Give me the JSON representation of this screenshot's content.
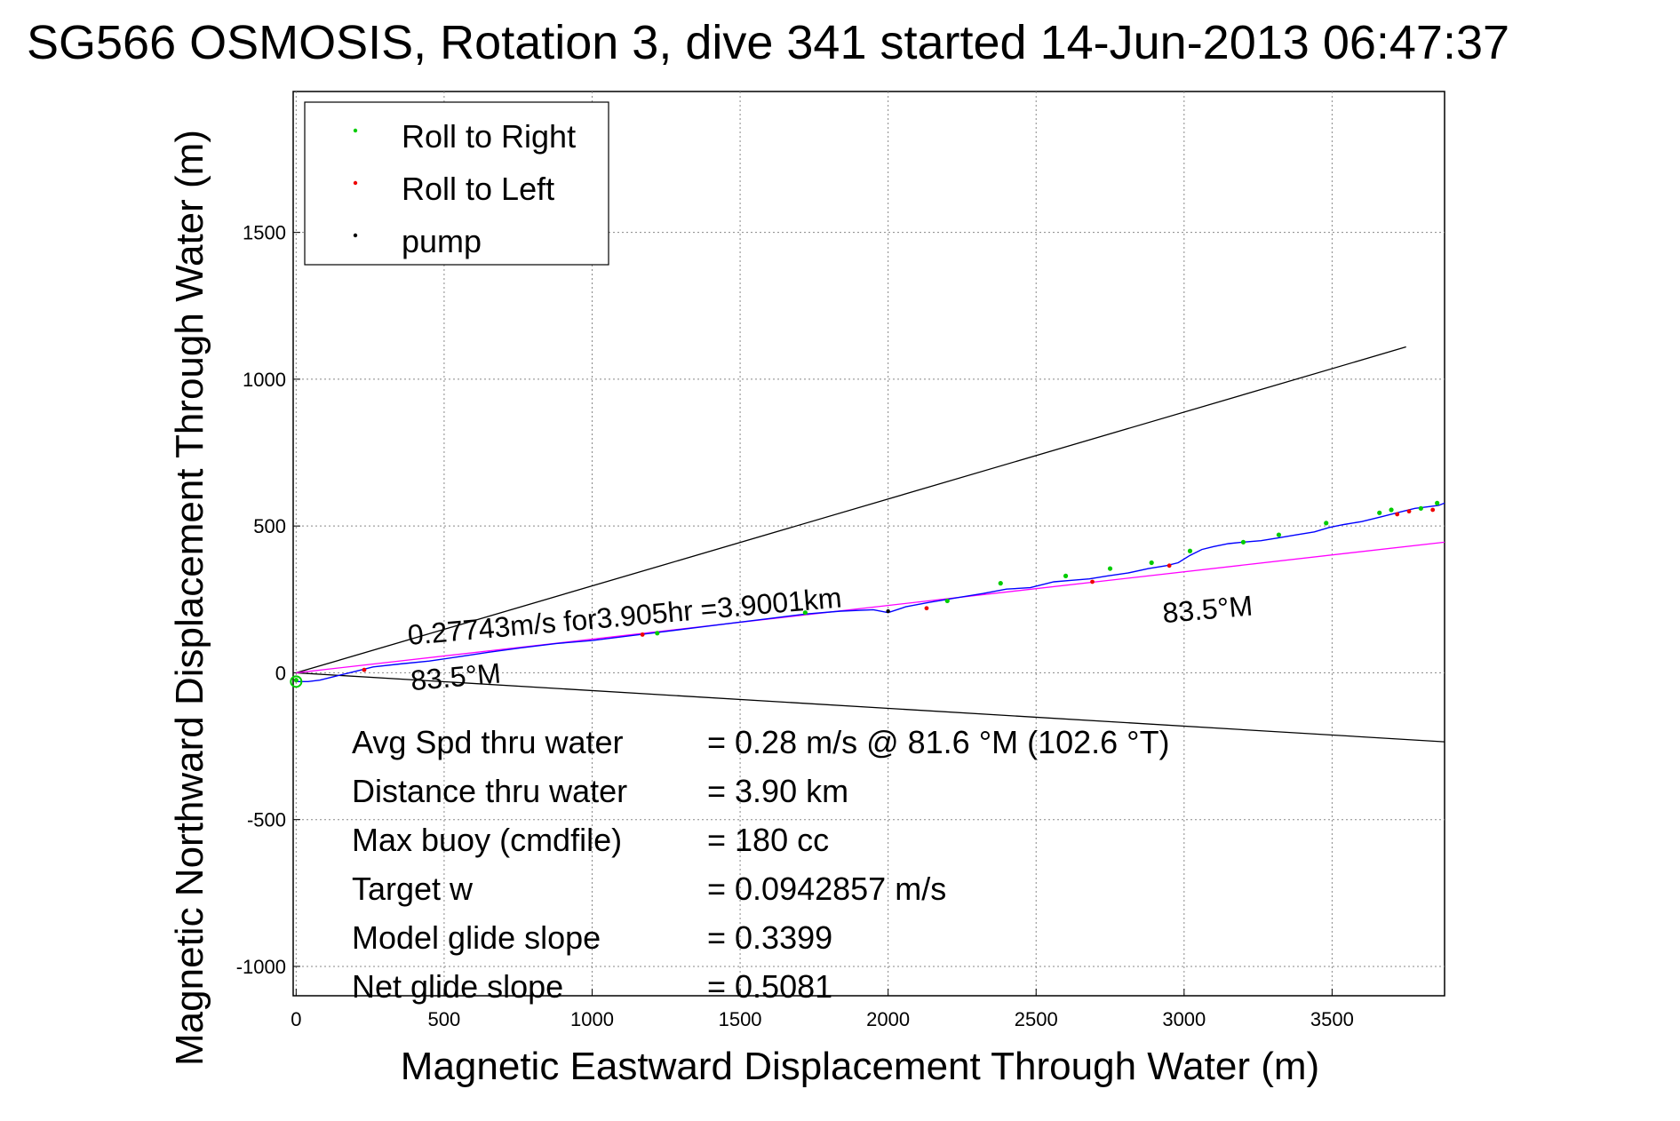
{
  "chart_data": {
    "type": "line",
    "title": "SG566 OSMOSIS, Rotation 3, dive 341 started 14-Jun-2013 06:47:37",
    "xlabel": "Magnetic Eastward Displacement Through Water (m)",
    "ylabel": "Magnetic Northward Displacement Through Water (m)",
    "xlim": [
      -10,
      3880
    ],
    "ylim": [
      -1100,
      1980
    ],
    "xticks": [
      0,
      500,
      1000,
      1500,
      2000,
      2500,
      3000,
      3500
    ],
    "yticks": [
      -1000,
      -500,
      0,
      500,
      1000,
      1500
    ],
    "grid": true,
    "legend_position": "top-left",
    "legend": [
      {
        "label": "Roll to Right",
        "color": "#00cc00"
      },
      {
        "label": "Roll to Left",
        "color": "#ee0000"
      },
      {
        "label": "pump",
        "color": "#000000"
      }
    ],
    "track": {
      "color": "#0000ff",
      "x": [
        0,
        40,
        80,
        140,
        200,
        260,
        350,
        450,
        550,
        650,
        760,
        880,
        1000,
        1120,
        1240,
        1360,
        1480,
        1600,
        1720,
        1840,
        1950,
        2000,
        2060,
        2140,
        2230,
        2320,
        2400,
        2480,
        2560,
        2620,
        2680,
        2740,
        2810,
        2880,
        2940,
        2980,
        3020,
        3060,
        3100,
        3150,
        3200,
        3260,
        3320,
        3380,
        3440,
        3490,
        3540,
        3600,
        3660,
        3700,
        3740,
        3780,
        3820,
        3860,
        3880
      ],
      "y": [
        -30,
        -30,
        -25,
        -10,
        5,
        20,
        30,
        40,
        55,
        70,
        85,
        100,
        110,
        125,
        140,
        155,
        170,
        185,
        200,
        210,
        215,
        205,
        225,
        240,
        255,
        270,
        285,
        290,
        310,
        315,
        320,
        330,
        340,
        355,
        365,
        375,
        400,
        420,
        430,
        440,
        445,
        450,
        460,
        470,
        480,
        495,
        505,
        515,
        530,
        540,
        550,
        560,
        565,
        570,
        578
      ]
    },
    "roll_right": {
      "x": [
        0,
        1220,
        1720,
        2200,
        2380,
        2600,
        2750,
        2890,
        3020,
        3200,
        3320,
        3480,
        3660,
        3700,
        3800,
        3855
      ],
      "y": [
        -25,
        135,
        205,
        245,
        305,
        330,
        355,
        375,
        415,
        445,
        470,
        510,
        545,
        555,
        560,
        578
      ]
    },
    "roll_left": {
      "x": [
        230,
        1170,
        2130,
        2690,
        2950,
        3720,
        3760,
        3840
      ],
      "y": [
        10,
        130,
        220,
        310,
        365,
        540,
        550,
        555
      ]
    },
    "pump": {
      "x": [
        2000
      ],
      "y": [
        210
      ]
    },
    "reference_lines": [
      {
        "color": "#000000",
        "x": [
          0,
          3750
        ],
        "y": [
          0,
          1110
        ]
      },
      {
        "color": "#000000",
        "x": [
          0,
          3880
        ],
        "y": [
          0,
          -235
        ]
      },
      {
        "color": "#ff00ff",
        "x": [
          0,
          3880
        ],
        "y": [
          0,
          445
        ]
      }
    ],
    "annotations": [
      {
        "text": "0.27743m/s for3.905hr =3.9001km",
        "x": 380,
        "y": 95,
        "angle": -5
      },
      {
        "text": "83.5°M",
        "x": 390,
        "y": -60,
        "angle": -5
      },
      {
        "text": "83.5°M",
        "x": 2930,
        "y": 170,
        "angle": -5
      }
    ],
    "stats": [
      {
        "label": "Avg Spd thru water",
        "value": "=  0.28 m/s @  81.6 °M (102.6 °T)"
      },
      {
        "label": "Distance thru water",
        "value": "=  3.90 km"
      },
      {
        "label": "Max buoy (cmdfile)",
        "value": "= 180 cc"
      },
      {
        "label": "Target w",
        "value": "= 0.0942857 m/s"
      },
      {
        "label": "Model glide slope",
        "value": "= 0.3399"
      },
      {
        "label": "Net glide slope",
        "value": "= 0.5081"
      }
    ]
  }
}
